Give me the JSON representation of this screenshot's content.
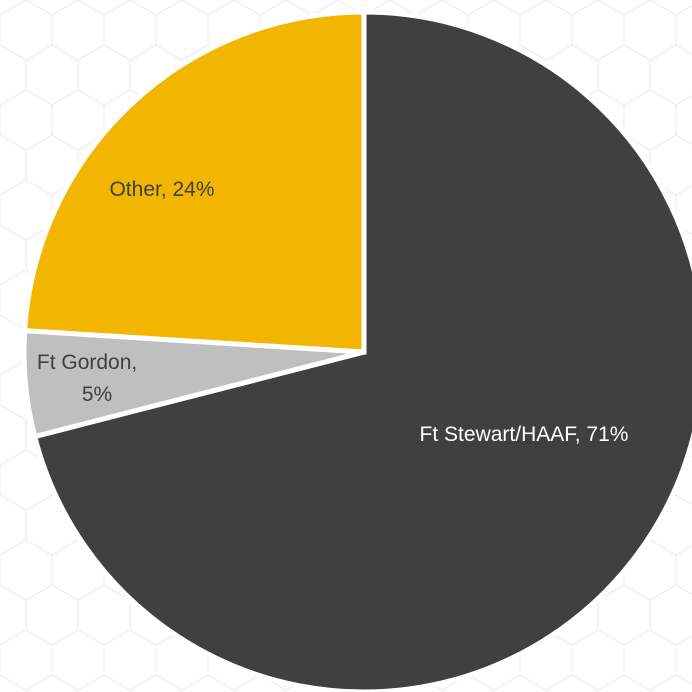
{
  "chart_data": {
    "type": "pie",
    "title": "",
    "slices": [
      {
        "category": "Ft Stewart/HAAF",
        "value": 71,
        "label": "Ft Stewart/HAAF, 71%",
        "color": "#404040",
        "label_color": "#ffffff"
      },
      {
        "category": "Ft Gordon",
        "value": 5,
        "label_lines": [
          "Ft Gordon,",
          "5%"
        ],
        "color": "#bfbfbf",
        "label_color": "#404040"
      },
      {
        "category": "Other",
        "value": 24,
        "label": "Other, 24%",
        "color": "#f2b600",
        "label_color": "#404040"
      }
    ],
    "start_angle_deg": 0,
    "direction": "clockwise",
    "legend": "none",
    "separator_color": "#ffffff",
    "background_pattern": "hexagon"
  }
}
